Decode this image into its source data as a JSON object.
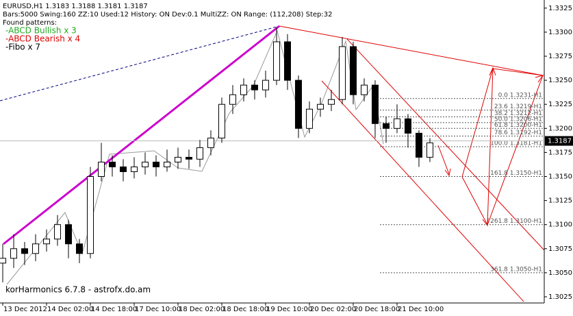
{
  "chart_data": {
    "type": "candlestick",
    "header": "EURUSD,H1  1.3183 1.3188 1.3181 1.3187",
    "info": "Bars:5000  Swing:160  ZZ:10  Used:12  History: ON Dev:0.1  MultiZZ: ON  Range: (112,208)  Step:32",
    "patterns_title": "Found patterns:",
    "patterns": [
      {
        "text": "-ABCD Bullish x 3",
        "color": "#22aa22"
      },
      {
        "text": "-ABCD Bearish x 4",
        "color": "#e00000"
      },
      {
        "text": "-Fibo x 7",
        "color": "#000000"
      }
    ],
    "footer": "korHarmonics 6.7.8 - astrofx.do.am",
    "up_color": "#ffffff",
    "down_color": "#000000",
    "open": [
      1.306,
      1.3065,
      1.3075,
      1.307,
      1.308,
      1.3085,
      1.31,
      1.308,
      1.307,
      1.315,
      1.3165,
      1.316,
      1.3155,
      1.316,
      1.3165,
      1.316,
      1.3165,
      1.317,
      1.3168,
      1.318,
      1.319,
      1.3225,
      1.3235,
      1.3245,
      1.324,
      1.325,
      1.329,
      1.325,
      1.32,
      1.322,
      1.3225,
      1.323,
      1.3285,
      1.3235,
      1.3245,
      1.3205,
      1.32,
      1.321,
      1.3195,
      1.317
    ],
    "high": [
      1.308,
      1.309,
      1.3082,
      1.309,
      1.3095,
      1.311,
      1.3105,
      1.3085,
      1.316,
      1.3185,
      1.3172,
      1.3168,
      1.317,
      1.3175,
      1.3172,
      1.3178,
      1.318,
      1.3178,
      1.3188,
      1.3198,
      1.3232,
      1.3245,
      1.3252,
      1.325,
      1.326,
      1.3305,
      1.3298,
      1.3255,
      1.3228,
      1.3232,
      1.324,
      1.3295,
      1.329,
      1.3252,
      1.325,
      1.3212,
      1.3225,
      1.3215,
      1.3198,
      1.319
    ],
    "low": [
      1.304,
      1.3055,
      1.3058,
      1.3062,
      1.3072,
      1.3078,
      1.3065,
      1.306,
      1.3065,
      1.3145,
      1.315,
      1.3145,
      1.3148,
      1.3152,
      1.315,
      1.3155,
      1.3158,
      1.3158,
      1.316,
      1.3172,
      1.3185,
      1.3215,
      1.3228,
      1.323,
      1.3232,
      1.3245,
      1.324,
      1.319,
      1.3195,
      1.3212,
      1.3218,
      1.3225,
      1.3225,
      1.3228,
      1.319,
      1.3185,
      1.3195,
      1.318,
      1.316,
      1.3165
    ],
    "close": [
      1.3065,
      1.3075,
      1.307,
      1.308,
      1.3085,
      1.31,
      1.308,
      1.307,
      1.315,
      1.3165,
      1.316,
      1.3155,
      1.316,
      1.3165,
      1.316,
      1.3165,
      1.317,
      1.3168,
      1.318,
      1.319,
      1.3225,
      1.3235,
      1.3245,
      1.324,
      1.325,
      1.329,
      1.325,
      1.32,
      1.322,
      1.3225,
      1.323,
      1.3285,
      1.3235,
      1.3245,
      1.3205,
      1.32,
      1.321,
      1.3195,
      1.317,
      1.3185
    ],
    "current": 1.3187,
    "xlim": [
      -0.25,
      49.44
    ],
    "xticks": [
      {
        "value": 0,
        "label": "13 Dec 2012"
      },
      {
        "value": 4,
        "label": "14 Dec 02:00"
      },
      {
        "value": 8,
        "label": "14 Dec 18:00"
      },
      {
        "value": 12,
        "label": "17 Dec 10:00"
      },
      {
        "value": 16,
        "label": "18 Dec 02:00"
      },
      {
        "value": 20,
        "label": "18 Dec 18:00"
      },
      {
        "value": 24,
        "label": "19 Dec 10:00"
      },
      {
        "value": 28,
        "label": "20 Dec 02:00"
      },
      {
        "value": 32,
        "label": "20 Dec 18:00"
      },
      {
        "value": 36,
        "label": "21 Dec 10:00"
      }
    ],
    "ylim": [
      1.302,
      1.3332
    ],
    "yticks": [
      1.3025,
      {
        "value": 1.305,
        "label": "1.3050"
      },
      1.3075,
      {
        "value": 1.31,
        "label": "1.3100"
      },
      1.3125,
      {
        "value": 1.315,
        "label": "1.3150"
      },
      1.3175,
      {
        "value": 1.32,
        "label": "1.3200"
      },
      1.3225,
      {
        "value": 1.325,
        "label": "1.3250"
      },
      1.3275,
      {
        "value": 1.33,
        "label": "1.3300"
      },
      1.3325
    ],
    "fibo": [
      {
        "label": "0.0 1.3231-H1",
        "value": 1.3231
      },
      {
        "label": "23.6 1.3219-H1",
        "value": 1.3219
      },
      {
        "label": "38.2 1.3212-H1",
        "value": 1.3212
      },
      {
        "label": "50.0 1.3206-H1",
        "value": 1.3206
      },
      {
        "label": "61.8 1.3200-H1",
        "value": 1.32
      },
      {
        "label": "78.6 1.3192-H1",
        "value": 1.3192
      },
      {
        "label": "100.0 1.3181-H1",
        "value": 1.3181
      },
      {
        "label": "161.8 1.3150-H1",
        "value": 1.315
      },
      {
        "label": "261.8 1.3100-H1",
        "value": 1.31
      },
      {
        "label": "361.8 1.3050-H1",
        "value": 1.305
      }
    ]
  }
}
